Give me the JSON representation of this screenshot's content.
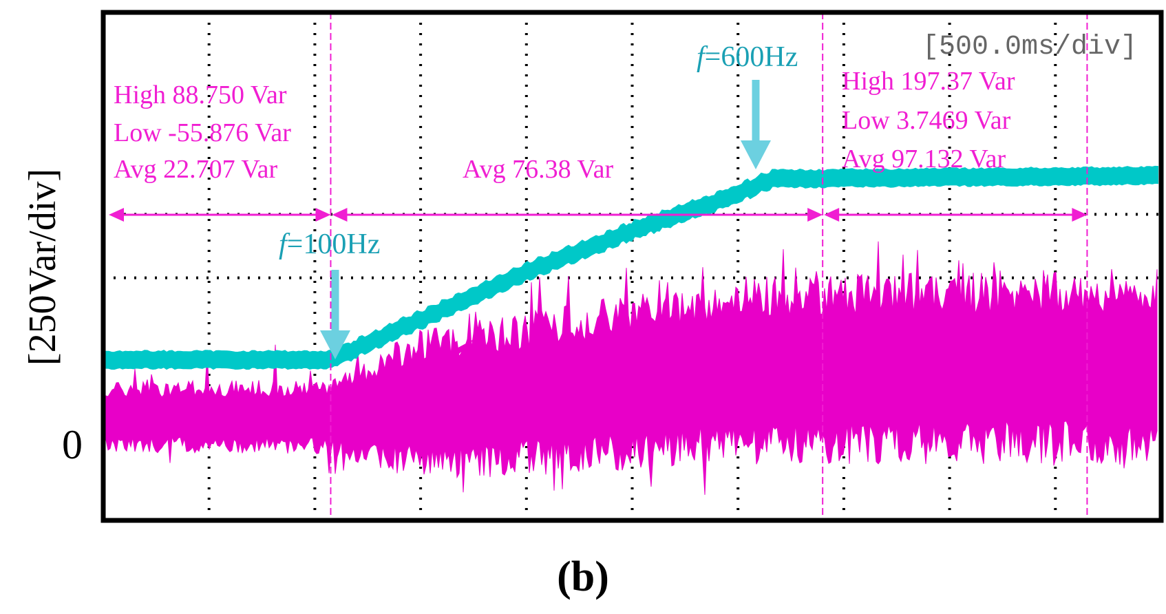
{
  "chart_data": {
    "type": "line",
    "panel_label": "(b)",
    "ylabel": "[250Var/div]",
    "y_zero_label": "0",
    "timebase": "[500.0ms/div]",
    "grid": true,
    "x_divisions": 10,
    "y_divisions": 8,
    "colors": {
      "cyan_trace": "#00c8c8",
      "magenta_trace": "#e800c8",
      "annotation_magenta": "#f01ed2",
      "annotation_cyan": "#1aa0b4",
      "arrow_cyan": "#6cd0e0",
      "grid": "#000000",
      "frame": "#000000"
    },
    "annotations": {
      "seg1": {
        "high": "High  88.750 Var",
        "low": "Low -55.876 Var",
        "avg": "Avg  22.707 Var"
      },
      "seg2": {
        "avg": "Avg  76.38 Var"
      },
      "seg3": {
        "high": "High  197.37 Var",
        "low": "Low  3.7469 Var",
        "avg": "Avg  97.132 Var"
      },
      "f1": {
        "prefix": "f",
        "text": "=100Hz"
      },
      "f2": {
        "prefix": "f",
        "text": "=600Hz"
      }
    },
    "series": [
      {
        "color": "cyan",
        "points_div": [
          [
            0,
            1.25
          ],
          [
            2.15,
            1.25
          ],
          [
            2.3,
            1.38
          ],
          [
            3.0,
            1.9
          ],
          [
            4.0,
            2.65
          ],
          [
            5.0,
            3.3
          ],
          [
            6.0,
            3.88
          ],
          [
            6.3,
            4.1
          ],
          [
            10,
            4.15
          ]
        ]
      },
      {
        "color": "magenta",
        "points_div": [
          [
            0,
            0.35
          ],
          [
            2.15,
            0.35
          ],
          [
            3.0,
            0.55
          ],
          [
            4.0,
            0.7
          ],
          [
            5.0,
            0.9
          ],
          [
            6.0,
            1.1
          ],
          [
            10,
            1.15
          ]
        ],
        "noise_div": [
          [
            0,
            0.55
          ],
          [
            2.15,
            0.6
          ],
          [
            3.0,
            1.2
          ],
          [
            6.0,
            1.5
          ],
          [
            10,
            1.55
          ]
        ]
      }
    ],
    "markers_div": [
      2.15,
      6.8,
      9.3
    ]
  }
}
